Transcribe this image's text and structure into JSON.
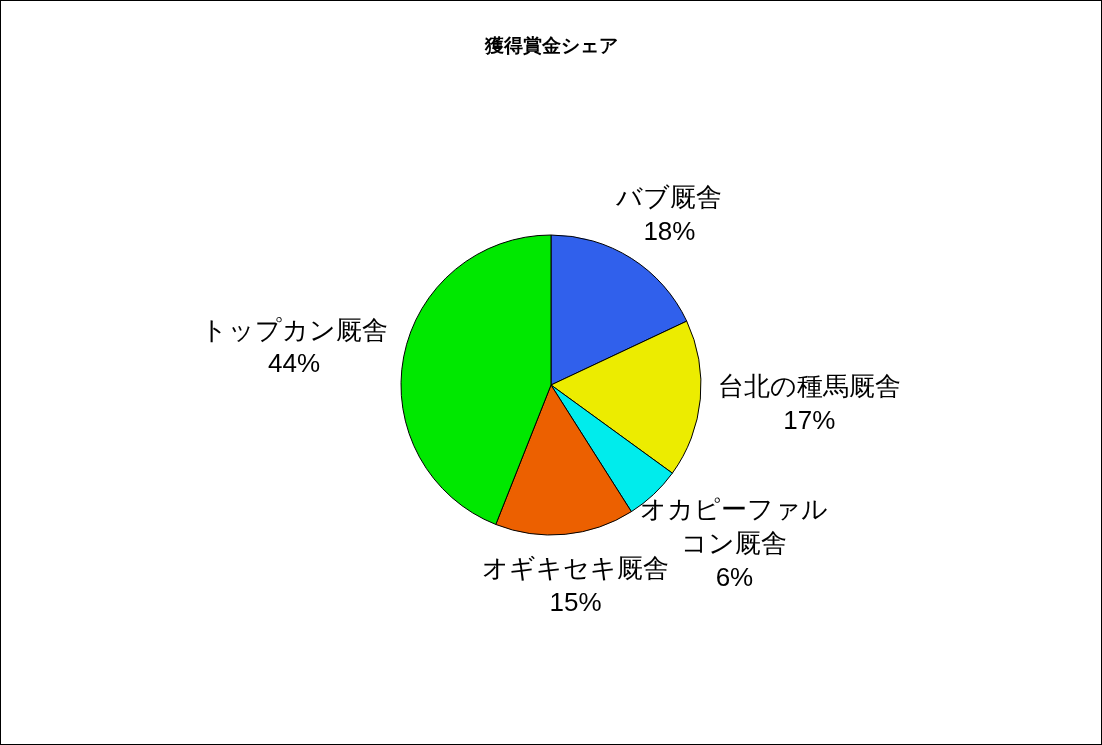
{
  "chart_data": {
    "type": "pie",
    "title": "獲得賞金シェア",
    "categories": [
      "バブ厩舎",
      "台北の種馬厩舎",
      "オカピーファルコン厩舎",
      "オギキセキ厩舎",
      "トップカン厩舎"
    ],
    "values": [
      18,
      17,
      6,
      15,
      44
    ],
    "colors": [
      "#3060ec",
      "#ecec00",
      "#00ecec",
      "#ec6000",
      "#00e800"
    ],
    "value_labels": [
      "18%",
      "17%",
      "6%",
      "15%",
      "44%"
    ]
  }
}
